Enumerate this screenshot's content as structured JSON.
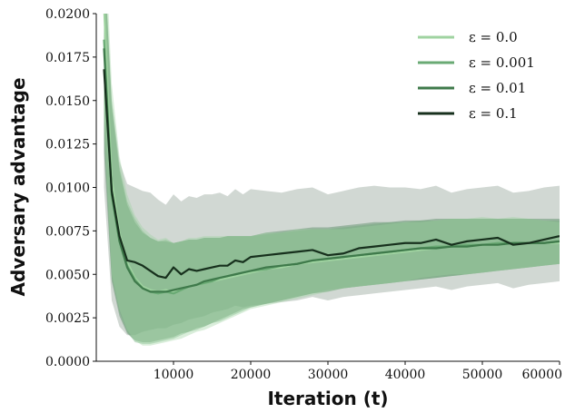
{
  "chart_data": {
    "type": "line",
    "title": "",
    "xlabel": "Iteration (t)",
    "ylabel": "Adversary advantage",
    "xlim": [
      0,
      60000
    ],
    "ylim": [
      0.0,
      0.02
    ],
    "x_ticks": [
      10000,
      20000,
      30000,
      40000,
      50000,
      60000
    ],
    "x_tick_labels": [
      "10000",
      "20000",
      "30000",
      "40000",
      "50000",
      "60000"
    ],
    "y_ticks": [
      0.0,
      0.0025,
      0.005,
      0.0075,
      0.01,
      0.0125,
      0.015,
      0.0175,
      0.02
    ],
    "y_tick_labels": [
      "0.0000",
      "0.0025",
      "0.0050",
      "0.0075",
      "0.0100",
      "0.0125",
      "0.0150",
      "0.0175",
      "0.0200"
    ],
    "grid": false,
    "legend_position": "top-right",
    "x": [
      1000,
      2000,
      3000,
      4000,
      5000,
      6000,
      7000,
      8000,
      9000,
      10000,
      11000,
      12000,
      13000,
      14000,
      15000,
      16000,
      17000,
      18000,
      19000,
      20000,
      22000,
      24000,
      26000,
      28000,
      30000,
      32000,
      34000,
      36000,
      38000,
      40000,
      42000,
      44000,
      46000,
      48000,
      50000,
      52000,
      54000,
      56000,
      58000,
      60000
    ],
    "series": [
      {
        "name": "ε = 0.0",
        "color": "#9fd3a0",
        "values": [
          0.0205,
          0.0105,
          0.0074,
          0.0057,
          0.0048,
          0.0043,
          0.0041,
          0.004,
          0.0041,
          0.004,
          0.0041,
          0.0043,
          0.0044,
          0.0045,
          0.0046,
          0.0047,
          0.0048,
          0.0049,
          0.005,
          0.0051,
          0.0053,
          0.0054,
          0.0056,
          0.0057,
          0.0058,
          0.0059,
          0.006,
          0.0061,
          0.0062,
          0.0063,
          0.0064,
          0.0065,
          0.0066,
          0.0066,
          0.0067,
          0.0067,
          0.0068,
          0.0068,
          0.0068,
          0.0068
        ],
        "lower": [
          0.014,
          0.005,
          0.003,
          0.0018,
          0.0012,
          0.0009,
          0.0009,
          0.001,
          0.0011,
          0.0012,
          0.0013,
          0.0015,
          0.0017,
          0.0018,
          0.002,
          0.0022,
          0.0024,
          0.0026,
          0.0028,
          0.003,
          0.0032,
          0.0034,
          0.0036,
          0.0038,
          0.004,
          0.0042,
          0.0043,
          0.0044,
          0.0045,
          0.0046,
          0.0048,
          0.0049,
          0.005,
          0.005,
          0.0051,
          0.0052,
          0.0053,
          0.0054,
          0.0055,
          0.0056
        ],
        "upper": [
          0.026,
          0.016,
          0.0118,
          0.0096,
          0.0084,
          0.0077,
          0.0073,
          0.007,
          0.0071,
          0.0068,
          0.0069,
          0.0071,
          0.0071,
          0.0072,
          0.0072,
          0.0072,
          0.0072,
          0.0072,
          0.0072,
          0.0072,
          0.0074,
          0.0074,
          0.0076,
          0.0076,
          0.0076,
          0.0076,
          0.0077,
          0.0078,
          0.0079,
          0.008,
          0.008,
          0.0081,
          0.0082,
          0.0082,
          0.0083,
          0.0082,
          0.0083,
          0.0082,
          0.0081,
          0.008
        ]
      },
      {
        "name": "ε = 0.001",
        "color": "#6aaa74",
        "values": [
          0.0185,
          0.0098,
          0.007,
          0.0055,
          0.0047,
          0.0042,
          0.004,
          0.0039,
          0.004,
          0.0039,
          0.0041,
          0.0043,
          0.0044,
          0.0045,
          0.0046,
          0.0048,
          0.0049,
          0.005,
          0.0051,
          0.0052,
          0.0053,
          0.0055,
          0.0056,
          0.0058,
          0.0059,
          0.006,
          0.0061,
          0.0062,
          0.0063,
          0.0064,
          0.0065,
          0.0066,
          0.0066,
          0.0067,
          0.0067,
          0.0068,
          0.0068,
          0.0068,
          0.0068,
          0.0069
        ],
        "lower": [
          0.013,
          0.0048,
          0.0028,
          0.0017,
          0.0011,
          0.001,
          0.001,
          0.0011,
          0.0012,
          0.0013,
          0.0015,
          0.0017,
          0.0018,
          0.002,
          0.0022,
          0.0023,
          0.0025,
          0.0027,
          0.0029,
          0.0031,
          0.0033,
          0.0035,
          0.0037,
          0.0039,
          0.0041,
          0.0042,
          0.0043,
          0.0044,
          0.0045,
          0.0046,
          0.0047,
          0.0048,
          0.0049,
          0.005,
          0.0051,
          0.0052,
          0.0053,
          0.0054,
          0.0055,
          0.0056
        ],
        "upper": [
          0.024,
          0.015,
          0.0112,
          0.0092,
          0.0082,
          0.0075,
          0.0071,
          0.0069,
          0.007,
          0.0068,
          0.0069,
          0.007,
          0.007,
          0.0071,
          0.0071,
          0.0071,
          0.0072,
          0.0072,
          0.0072,
          0.0072,
          0.0073,
          0.0074,
          0.0075,
          0.0076,
          0.0076,
          0.0077,
          0.0078,
          0.0079,
          0.008,
          0.008,
          0.0081,
          0.0081,
          0.0082,
          0.0082,
          0.0082,
          0.0082,
          0.0082,
          0.0082,
          0.0081,
          0.0081
        ]
      },
      {
        "name": "ε = 0.01",
        "color": "#3f7a4b",
        "values": [
          0.018,
          0.0096,
          0.0069,
          0.0054,
          0.0046,
          0.0042,
          0.004,
          0.004,
          0.004,
          0.0041,
          0.0042,
          0.0043,
          0.0044,
          0.0046,
          0.0047,
          0.0048,
          0.0049,
          0.005,
          0.0051,
          0.0052,
          0.0054,
          0.0055,
          0.0056,
          0.0058,
          0.0059,
          0.006,
          0.0061,
          0.0062,
          0.0063,
          0.0064,
          0.0065,
          0.0065,
          0.0066,
          0.0066,
          0.0067,
          0.0067,
          0.0068,
          0.0068,
          0.0068,
          0.0069
        ],
        "lower": [
          0.012,
          0.0046,
          0.0026,
          0.0016,
          0.0012,
          0.0011,
          0.0011,
          0.0012,
          0.0013,
          0.0014,
          0.0016,
          0.0017,
          0.0019,
          0.002,
          0.0022,
          0.0024,
          0.0026,
          0.0028,
          0.003,
          0.0031,
          0.0033,
          0.0035,
          0.0037,
          0.0039,
          0.004,
          0.0042,
          0.0043,
          0.0044,
          0.0045,
          0.0046,
          0.0047,
          0.0048,
          0.0049,
          0.005,
          0.0051,
          0.0052,
          0.0053,
          0.0054,
          0.0055,
          0.0056
        ],
        "upper": [
          0.0235,
          0.0146,
          0.011,
          0.009,
          0.008,
          0.0074,
          0.0071,
          0.0069,
          0.0069,
          0.0068,
          0.0069,
          0.007,
          0.007,
          0.0071,
          0.0071,
          0.0071,
          0.0072,
          0.0072,
          0.0072,
          0.0072,
          0.0074,
          0.0075,
          0.0076,
          0.0077,
          0.0077,
          0.0078,
          0.0079,
          0.008,
          0.008,
          0.0081,
          0.0081,
          0.0082,
          0.0082,
          0.0082,
          0.0082,
          0.0082,
          0.0082,
          0.0082,
          0.0082,
          0.0082
        ]
      },
      {
        "name": "ε = 0.1",
        "color": "#17301d",
        "values": [
          0.0168,
          0.0098,
          0.0072,
          0.0058,
          0.0057,
          0.0055,
          0.0052,
          0.0049,
          0.0048,
          0.0054,
          0.005,
          0.0053,
          0.0052,
          0.0053,
          0.0054,
          0.0055,
          0.0055,
          0.0058,
          0.0057,
          0.006,
          0.0061,
          0.0062,
          0.0063,
          0.0064,
          0.0061,
          0.0062,
          0.0065,
          0.0066,
          0.0067,
          0.0068,
          0.0068,
          0.007,
          0.0067,
          0.0069,
          0.007,
          0.0071,
          0.0067,
          0.0068,
          0.007,
          0.0072
        ],
        "lower": [
          0.01,
          0.0035,
          0.002,
          0.0015,
          0.0015,
          0.0017,
          0.0018,
          0.0019,
          0.0019,
          0.0021,
          0.0022,
          0.0024,
          0.0025,
          0.0026,
          0.0028,
          0.0029,
          0.003,
          0.0032,
          0.0031,
          0.0032,
          0.0033,
          0.0034,
          0.0035,
          0.0037,
          0.0035,
          0.0037,
          0.0038,
          0.0039,
          0.004,
          0.0041,
          0.0042,
          0.0043,
          0.0041,
          0.0043,
          0.0044,
          0.0045,
          0.0042,
          0.0044,
          0.0045,
          0.0046
        ],
        "upper": [
          0.023,
          0.015,
          0.0115,
          0.0102,
          0.01,
          0.0098,
          0.0097,
          0.0093,
          0.009,
          0.0096,
          0.0092,
          0.0095,
          0.0094,
          0.0096,
          0.0096,
          0.0097,
          0.0095,
          0.0099,
          0.0096,
          0.0099,
          0.0098,
          0.0097,
          0.0099,
          0.01,
          0.0096,
          0.0098,
          0.01,
          0.0101,
          0.01,
          0.01,
          0.0099,
          0.0101,
          0.0097,
          0.0099,
          0.01,
          0.0101,
          0.0097,
          0.0098,
          0.01,
          0.0101
        ]
      }
    ]
  }
}
